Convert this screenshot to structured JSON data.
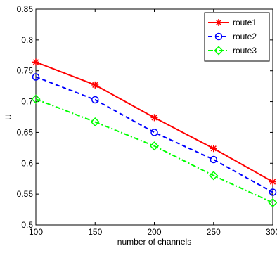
{
  "chart_data": {
    "type": "line",
    "xlabel": "number of channels",
    "ylabel": "U",
    "xlim": [
      100,
      300
    ],
    "ylim": [
      0.5,
      0.85
    ],
    "x_ticks": [
      "100",
      "150",
      "200",
      "250",
      "300"
    ],
    "y_ticks": [
      "0.5",
      "0.55",
      "0.6",
      "0.65",
      "0.7",
      "0.75",
      "0.8",
      "0.85"
    ],
    "x": [
      100,
      150,
      200,
      250,
      300
    ],
    "legend_position": "top-right",
    "series": [
      {
        "name": "route1",
        "values": [
          0.764,
          0.727,
          0.674,
          0.624,
          0.57
        ],
        "color": "#ff0000",
        "line": "solid",
        "marker": "star"
      },
      {
        "name": "route2",
        "values": [
          0.74,
          0.703,
          0.65,
          0.606,
          0.553
        ],
        "color": "#0000ff",
        "line": "dashed",
        "marker": "circle"
      },
      {
        "name": "route3",
        "values": [
          0.704,
          0.667,
          0.628,
          0.58,
          0.536
        ],
        "color": "#00ff00",
        "line": "dashdot",
        "marker": "diamond"
      }
    ]
  }
}
